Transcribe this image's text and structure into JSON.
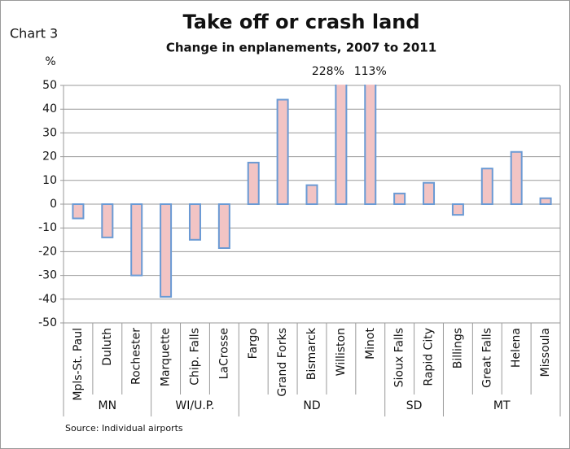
{
  "chart_data": {
    "type": "bar",
    "title": "Take off or crash land",
    "subtitle": "Change in enplanements, 2007 to 2011",
    "chart_label": "Chart 3",
    "y_label": "%",
    "source": "Source: Individual airports",
    "categories": [
      "Mpls-St. Paul",
      "Duluth",
      "Rochester",
      "Marquette",
      "Chip. Falls",
      "LaCrosse",
      "Fargo",
      "Grand Forks",
      "Bismarck",
      "Williston",
      "Minot",
      "Sioux Falls",
      "Rapid City",
      "Billings",
      "Great Falls",
      "Helena",
      "Missoula"
    ],
    "groups": [
      "MN",
      "MN",
      "MN",
      "WI/U.P.",
      "WI/U.P.",
      "WI/U.P.",
      "ND",
      "ND",
      "ND",
      "ND",
      "ND",
      "SD",
      "SD",
      "MT",
      "MT",
      "MT",
      "MT"
    ],
    "values": [
      -6,
      -14,
      -30,
      -39,
      -15,
      -18.5,
      17.5,
      44,
      8,
      228,
      113,
      4.5,
      9,
      -4.5,
      15,
      22,
      2.5
    ],
    "value_labels": [
      null,
      null,
      null,
      null,
      null,
      null,
      null,
      null,
      null,
      "228%",
      "113%",
      null,
      null,
      null,
      null,
      null,
      null
    ],
    "color": "#f2c4c4",
    "edge_color": "#6a9ad4",
    "ylim": [
      -50,
      50
    ],
    "yticks": [
      -50,
      -40,
      -30,
      -20,
      -10,
      0,
      10,
      20,
      30,
      40,
      50
    ],
    "grid": true
  }
}
